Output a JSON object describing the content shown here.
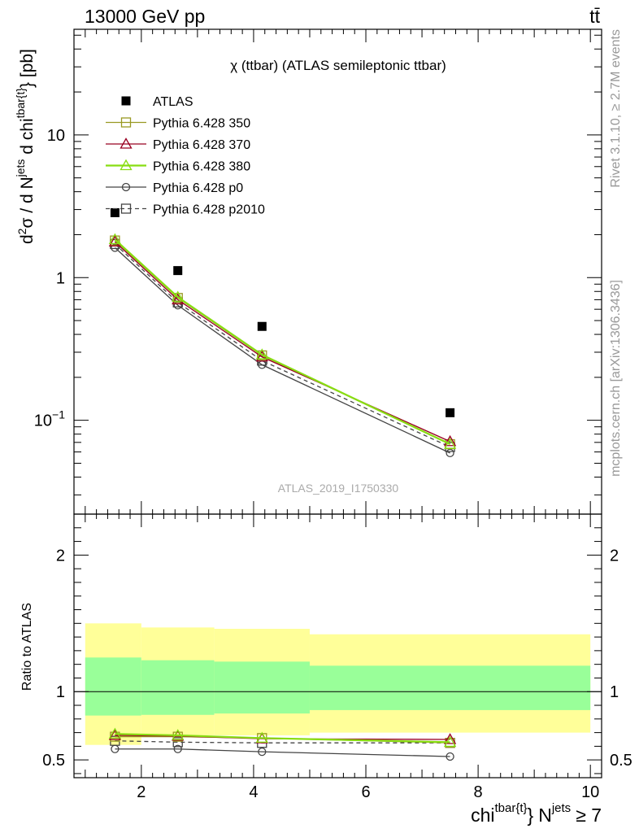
{
  "header": {
    "left": "13000 GeV pp",
    "right": "tt̄"
  },
  "side": {
    "top": "Rivet 3.1.10, ≥ 2.7M events",
    "bottom": "mcplots.cern.ch [arXiv:1306.3436]"
  },
  "chart_data": {
    "type": "line",
    "title": "χ (ttbar) (ATLAS semileptonic ttbar)",
    "watermark": "ATLAS_2019_I1750330",
    "x_title_main": "chi",
    "x_title_sup1": "tbar{t}",
    "x_title_close": "}",
    "x_title_n": "N",
    "x_title_sup2": "jets",
    "x_title_tail": "≥ 7",
    "y_title_main": "d²σ / d N^jets d chi^tbar{t}} [pb]",
    "y_title_ratio": "Ratio to ATLAS",
    "xlim": [
      0.8,
      10.2
    ],
    "ylim_main": [
      0.022,
      55
    ],
    "ylim_ratio": [
      0.37,
      2.3
    ],
    "yscale_main": "log",
    "x_ticks": [
      "2",
      "4",
      "6",
      "8",
      "10"
    ],
    "y_ticks_main": [
      "10^-1",
      "1",
      "10"
    ],
    "y_ticks_ratio": [
      "0.5",
      "1",
      "2"
    ],
    "legend_position": "top-left",
    "bins": [
      [
        1.0,
        2.0
      ],
      [
        2.0,
        3.3
      ],
      [
        3.3,
        5.0
      ],
      [
        5.0,
        10.0
      ]
    ],
    "x": [
      1.53,
      2.65,
      4.15,
      7.5
    ],
    "band_inner": [
      [
        0.825,
        1.25
      ],
      [
        0.83,
        1.23
      ],
      [
        0.84,
        1.22
      ],
      [
        0.865,
        1.19
      ]
    ],
    "band_outer": [
      [
        0.61,
        1.5
      ],
      [
        0.68,
        1.47
      ],
      [
        0.68,
        1.46
      ],
      [
        0.7,
        1.42
      ]
    ],
    "series": [
      {
        "name": "ATLAS",
        "values": [
          2.85,
          1.12,
          0.455,
          0.113
        ],
        "ratio": [
          1,
          1,
          1,
          1
        ],
        "color": "#000000",
        "marker": "filled-square"
      },
      {
        "name": "Pythia 6.428 350",
        "values": [
          1.82,
          0.72,
          0.285,
          0.068
        ],
        "ratio": [
          0.67,
          0.67,
          0.66,
          0.625
        ],
        "color": "#999922",
        "marker": "open-square"
      },
      {
        "name": "Pythia 6.428 370",
        "values": [
          1.78,
          0.7,
          0.278,
          0.071
        ],
        "ratio": [
          0.68,
          0.675,
          0.655,
          0.65
        ],
        "color": "#990022",
        "marker": "open-triangle"
      },
      {
        "name": "Pythia 6.428 380",
        "values": [
          1.85,
          0.73,
          0.288,
          0.068
        ],
        "ratio": [
          0.69,
          0.68,
          0.66,
          0.63
        ],
        "color": "#88dd11",
        "marker": "open-triangle"
      },
      {
        "name": "Pythia 6.428 p0",
        "values": [
          1.62,
          0.64,
          0.245,
          0.059
        ],
        "ratio": [
          0.58,
          0.58,
          0.56,
          0.525
        ],
        "color": "#444444",
        "marker": "open-circle"
      },
      {
        "name": "Pythia 6.428 p2010",
        "values": [
          1.72,
          0.67,
          0.262,
          0.065
        ],
        "ratio": [
          0.64,
          0.63,
          0.625,
          0.625
        ],
        "color": "#444444",
        "marker": "open-square-dashed"
      }
    ]
  }
}
